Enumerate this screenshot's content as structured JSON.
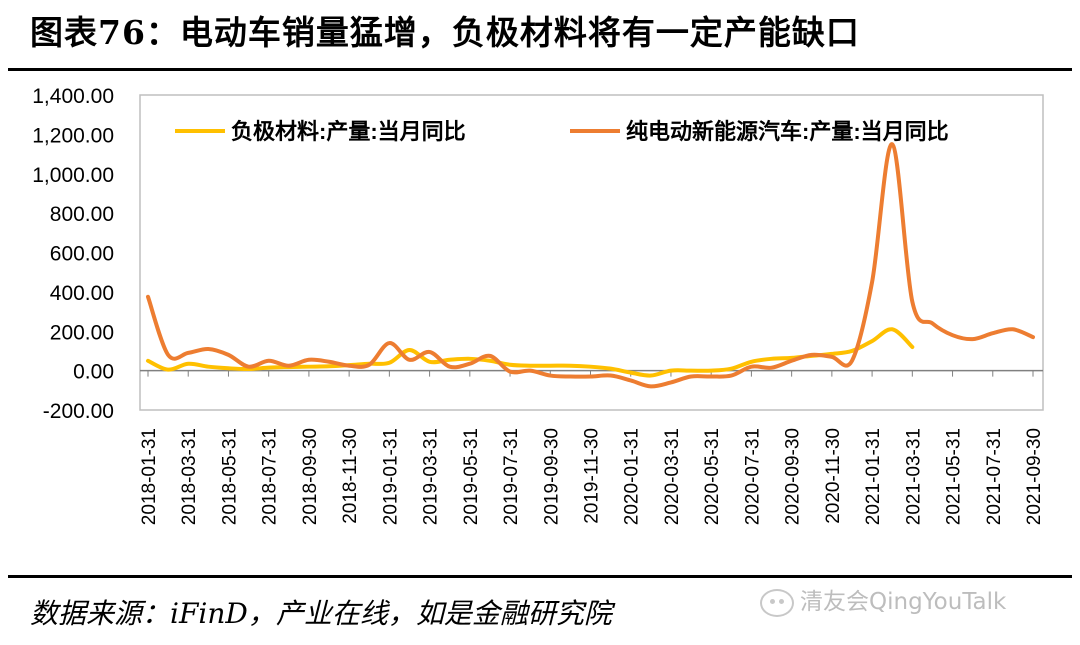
{
  "title": "图表76：电动车销量猛增，负极材料将有一定产能缺口",
  "source": "数据来源：iFinD，产业在线，如是金融研究院",
  "watermark": "清友会QingYouTalk",
  "watermark_icon": "wechat-icon",
  "colors": {
    "series1": "#FFC000",
    "series2": "#ED7D31",
    "axis": "#808080",
    "frame": "#bfbfbf"
  },
  "chart_data": {
    "type": "line",
    "title": "",
    "xlabel": "",
    "ylabel": "",
    "ylim": [
      -200,
      1400
    ],
    "yticks": [
      -200,
      0,
      200,
      400,
      600,
      800,
      1000,
      1200,
      1400
    ],
    "ytick_labels": [
      "-200.00",
      "0.00",
      "200.00",
      "400.00",
      "600.00",
      "800.00",
      "1,000.00",
      "1,200.00",
      "1,400.00"
    ],
    "xtick_labels": [
      "2018-01-31",
      "2018-03-31",
      "2018-05-31",
      "2018-07-31",
      "2018-09-30",
      "2018-11-30",
      "2019-01-31",
      "2019-03-31",
      "2019-05-31",
      "2019-07-31",
      "2019-09-30",
      "2019-11-30",
      "2020-01-31",
      "2020-03-31",
      "2020-05-31",
      "2020-07-31",
      "2020-09-30",
      "2020-11-30",
      "2021-01-31",
      "2021-03-31",
      "2021-05-31",
      "2021-07-31",
      "2021-09-30"
    ],
    "x": [
      "2018-01",
      "2018-02",
      "2018-03",
      "2018-04",
      "2018-05",
      "2018-06",
      "2018-07",
      "2018-08",
      "2018-09",
      "2018-10",
      "2018-11",
      "2018-12",
      "2019-01",
      "2019-02",
      "2019-03",
      "2019-04",
      "2019-05",
      "2019-06",
      "2019-07",
      "2019-08",
      "2019-09",
      "2019-10",
      "2019-11",
      "2019-12",
      "2020-01",
      "2020-02",
      "2020-03",
      "2020-04",
      "2020-05",
      "2020-06",
      "2020-07",
      "2020-08",
      "2020-09",
      "2020-10",
      "2020-11",
      "2020-12",
      "2021-01",
      "2021-02",
      "2021-03",
      "2021-04",
      "2021-05",
      "2021-06",
      "2021-07",
      "2021-08",
      "2021-09"
    ],
    "legend_position": "top",
    "grid": false,
    "series": [
      {
        "name": "负极材料:产量:当月同比",
        "values": [
          50,
          5,
          35,
          20,
          12,
          8,
          15,
          18,
          20,
          22,
          28,
          35,
          40,
          105,
          45,
          55,
          60,
          50,
          30,
          25,
          25,
          25,
          20,
          10,
          -10,
          -25,
          0,
          0,
          0,
          10,
          45,
          60,
          65,
          75,
          85,
          100,
          150,
          210,
          120,
          null,
          null,
          null,
          null,
          null,
          null
        ]
      },
      {
        "name": "纯电动新能源汽车:产量:当月同比",
        "values": [
          375,
          80,
          90,
          110,
          80,
          20,
          50,
          25,
          55,
          45,
          25,
          30,
          140,
          55,
          95,
          20,
          35,
          75,
          -5,
          0,
          -25,
          -30,
          -30,
          -25,
          -50,
          -80,
          -60,
          -30,
          -30,
          -25,
          20,
          15,
          50,
          80,
          70,
          50,
          450,
          1150,
          350,
          240,
          180,
          160,
          190,
          210,
          170
        ]
      }
    ]
  }
}
